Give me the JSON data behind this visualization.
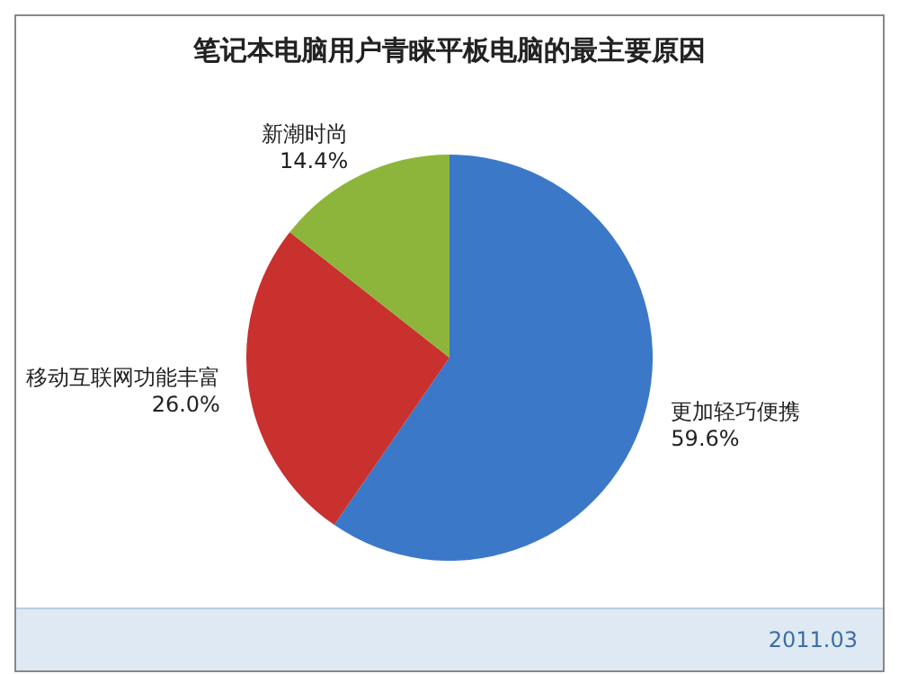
{
  "chart_data": {
    "type": "pie",
    "title": "笔记本电脑用户青睐平板电脑的最主要原因",
    "categories": [
      "更加轻巧便携",
      "移动互联网功能丰富",
      "新潮时尚"
    ],
    "values": [
      59.6,
      26.0,
      14.4
    ],
    "colors": [
      "#3b78c8",
      "#c8312e",
      "#8db53b"
    ],
    "value_labels": [
      "59.6%",
      "26.0%",
      "14.4%"
    ],
    "legend": false,
    "annotations": [
      "2011.03"
    ]
  }
}
